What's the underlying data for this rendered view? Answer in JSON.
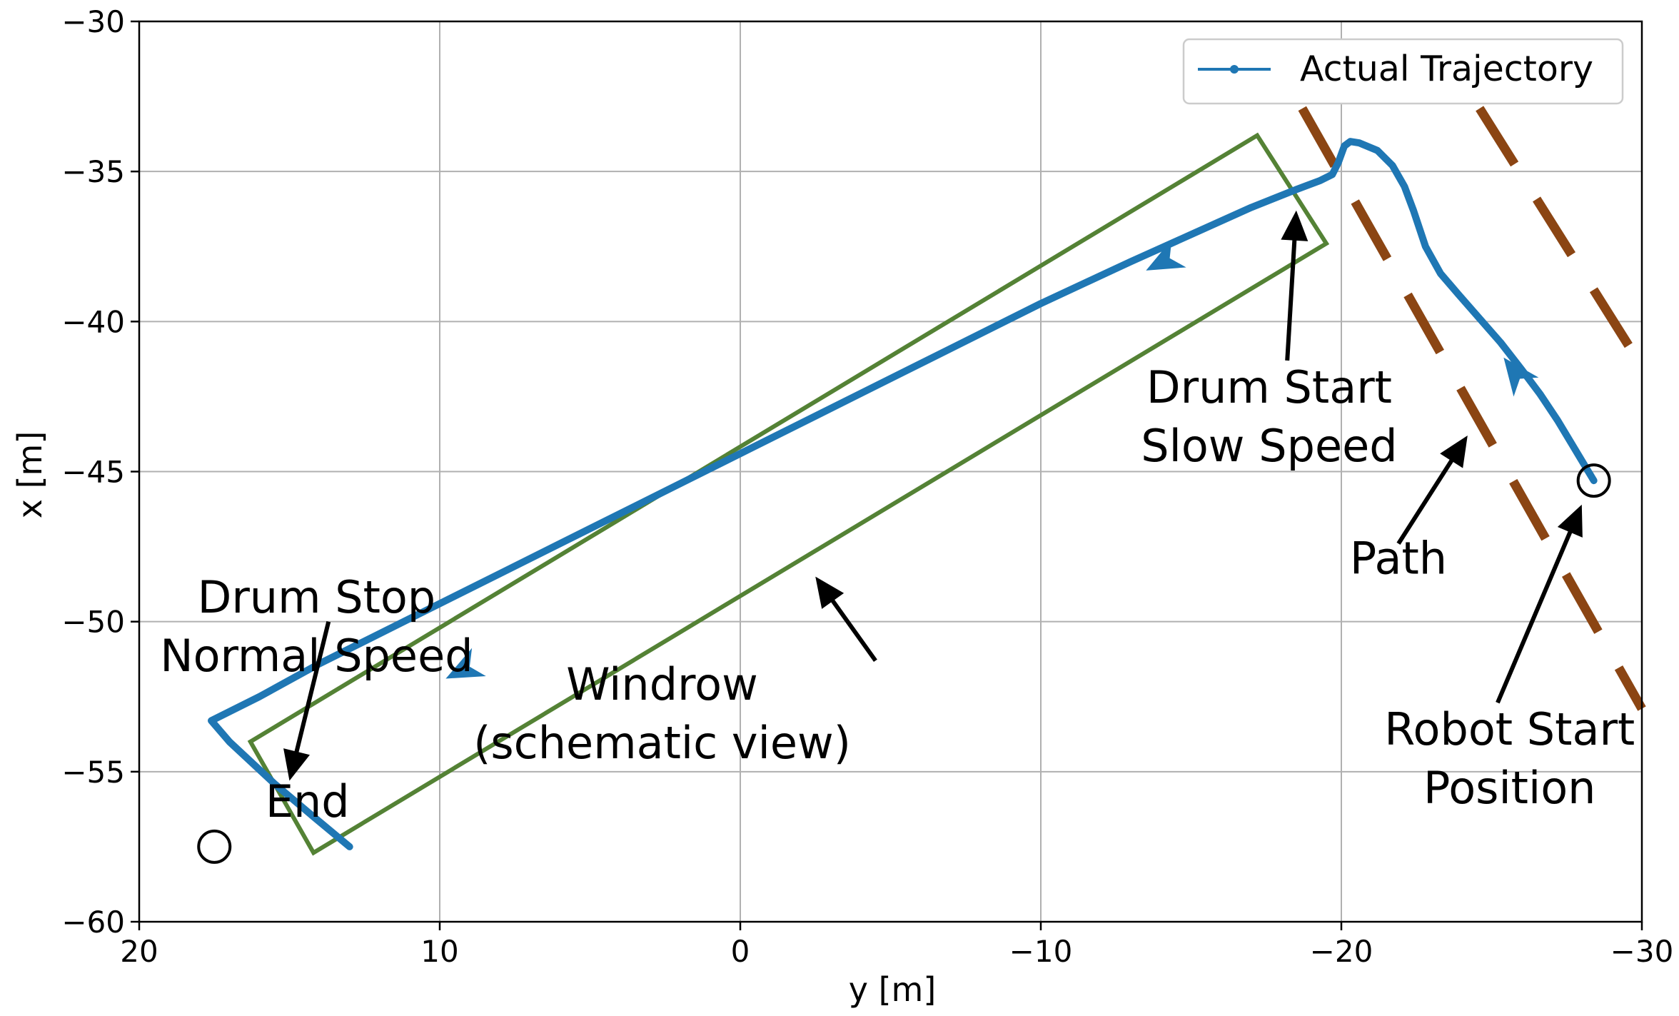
{
  "chart_data": {
    "type": "line",
    "title": "",
    "xlabel": "y [m]",
    "ylabel": "x [m]",
    "xlim": [
      20,
      -30
    ],
    "ylim": [
      -60,
      -30
    ],
    "x_ticks": [
      20,
      10,
      0,
      -10,
      -20,
      -30
    ],
    "y_ticks": [
      -30,
      -35,
      -40,
      -45,
      -50,
      -55,
      -60
    ],
    "x_tick_labels": [
      "20",
      "10",
      "0",
      "−10",
      "−20",
      "−30"
    ],
    "y_tick_labels": [
      "−30",
      "−35",
      "−40",
      "−45",
      "−50",
      "−55",
      "−60"
    ],
    "grid": true,
    "legend_position": "top-right",
    "series": [
      {
        "name": "Actual Trajectory",
        "color": "#1f77b4",
        "points": [
          [
            -28.4,
            -45.3
          ],
          [
            -27.8,
            -44.3
          ],
          [
            -27.2,
            -43.3
          ],
          [
            -26.6,
            -42.4
          ],
          [
            -26.0,
            -41.6
          ],
          [
            -25.3,
            -40.7
          ],
          [
            -24.6,
            -39.9
          ],
          [
            -23.9,
            -39.1
          ],
          [
            -23.3,
            -38.4
          ],
          [
            -22.8,
            -37.5
          ],
          [
            -22.4,
            -36.3
          ],
          [
            -22.1,
            -35.5
          ],
          [
            -21.7,
            -34.8
          ],
          [
            -21.2,
            -34.3
          ],
          [
            -20.6,
            -34.05
          ],
          [
            -20.3,
            -34.0
          ],
          [
            -20.1,
            -34.15
          ],
          [
            -19.9,
            -34.7
          ],
          [
            -19.7,
            -35.1
          ],
          [
            -19.3,
            -35.3
          ],
          [
            -18.5,
            -35.6
          ],
          [
            -17.0,
            -36.2
          ],
          [
            -15.0,
            -37.1
          ],
          [
            -13.0,
            -38.0
          ],
          [
            -10.0,
            -39.4
          ],
          [
            -7.0,
            -40.9
          ],
          [
            -4.0,
            -42.4
          ],
          [
            -1.0,
            -43.9
          ],
          [
            2.0,
            -45.4
          ],
          [
            5.0,
            -46.9
          ],
          [
            8.0,
            -48.4
          ],
          [
            11.0,
            -49.9
          ],
          [
            14.0,
            -51.4
          ],
          [
            16.0,
            -52.5
          ],
          [
            17.6,
            -53.3
          ],
          [
            17.0,
            -54.0
          ],
          [
            15.5,
            -55.4
          ],
          [
            14.2,
            -56.5
          ],
          [
            13.0,
            -57.5
          ],
          [
            17.5,
            -57.5
          ]
        ]
      }
    ],
    "annotations": [
      {
        "lines": [
          "Drum Start",
          "Slow Speed"
        ]
      },
      {
        "lines": [
          "Drum Stop",
          "Normal Speed"
        ]
      },
      {
        "lines": [
          "Windrow",
          "(schematic view)"
        ]
      },
      {
        "lines": [
          "Path"
        ]
      },
      {
        "lines": [
          "Robot Start",
          "Position"
        ]
      },
      {
        "lines": [
          "End"
        ]
      }
    ],
    "overlays": {
      "windrow_color": "#548235",
      "path_color": "#8b4513"
    }
  }
}
